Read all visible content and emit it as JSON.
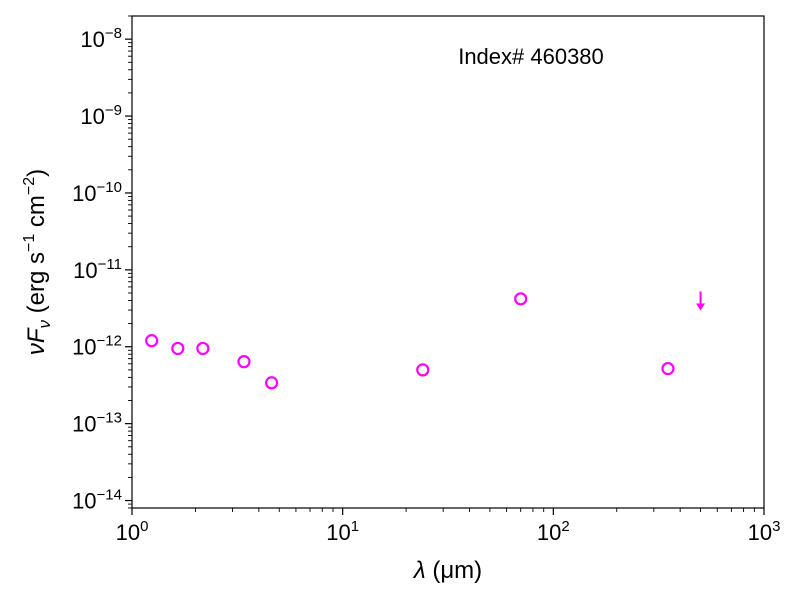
{
  "chart_data": {
    "type": "scatter",
    "annotation": "Index# 460380",
    "xlabel": {
      "symbol": "λ",
      "unit": "(μm)"
    },
    "ylabel": {
      "prefix": "ν",
      "symbol": "F",
      "subscript": "ν",
      "unit_pre": " (erg s",
      "exp1": "−1",
      "unit_mid": " cm",
      "exp2": "−2",
      "unit_post": ")"
    },
    "x_scale": "log",
    "y_scale": "log",
    "xlim": [
      1,
      1000
    ],
    "ylim": [
      8e-15,
      2e-08
    ],
    "x_ticks": [
      {
        "base": "10",
        "exp": "0",
        "value": 1
      },
      {
        "base": "10",
        "exp": "1",
        "value": 10
      },
      {
        "base": "10",
        "exp": "2",
        "value": 100
      },
      {
        "base": "10",
        "exp": "3",
        "value": 1000
      }
    ],
    "y_ticks": [
      {
        "base": "10",
        "exp": "−14",
        "value": 1e-14
      },
      {
        "base": "10",
        "exp": "−13",
        "value": 1e-13
      },
      {
        "base": "10",
        "exp": "−12",
        "value": 1e-12
      },
      {
        "base": "10",
        "exp": "−11",
        "value": 1e-11
      },
      {
        "base": "10",
        "exp": "−10",
        "value": 1e-10
      },
      {
        "base": "10",
        "exp": "−9",
        "value": 1e-09
      },
      {
        "base": "10",
        "exp": "−8",
        "value": 1e-08
      }
    ],
    "grid": false,
    "marker_color": "#ff00ff",
    "points": [
      {
        "x": 1.24,
        "y": 1.2e-12
      },
      {
        "x": 1.65,
        "y": 9.5e-13
      },
      {
        "x": 2.17,
        "y": 9.5e-13
      },
      {
        "x": 3.4,
        "y": 6.4e-13
      },
      {
        "x": 4.6,
        "y": 3.4e-13
      },
      {
        "x": 24,
        "y": 5e-13
      },
      {
        "x": 70,
        "y": 4.2e-12
      },
      {
        "x": 350,
        "y": 5.2e-13
      }
    ],
    "upper_limits": [
      {
        "x": 500,
        "y": 4e-12
      }
    ]
  }
}
